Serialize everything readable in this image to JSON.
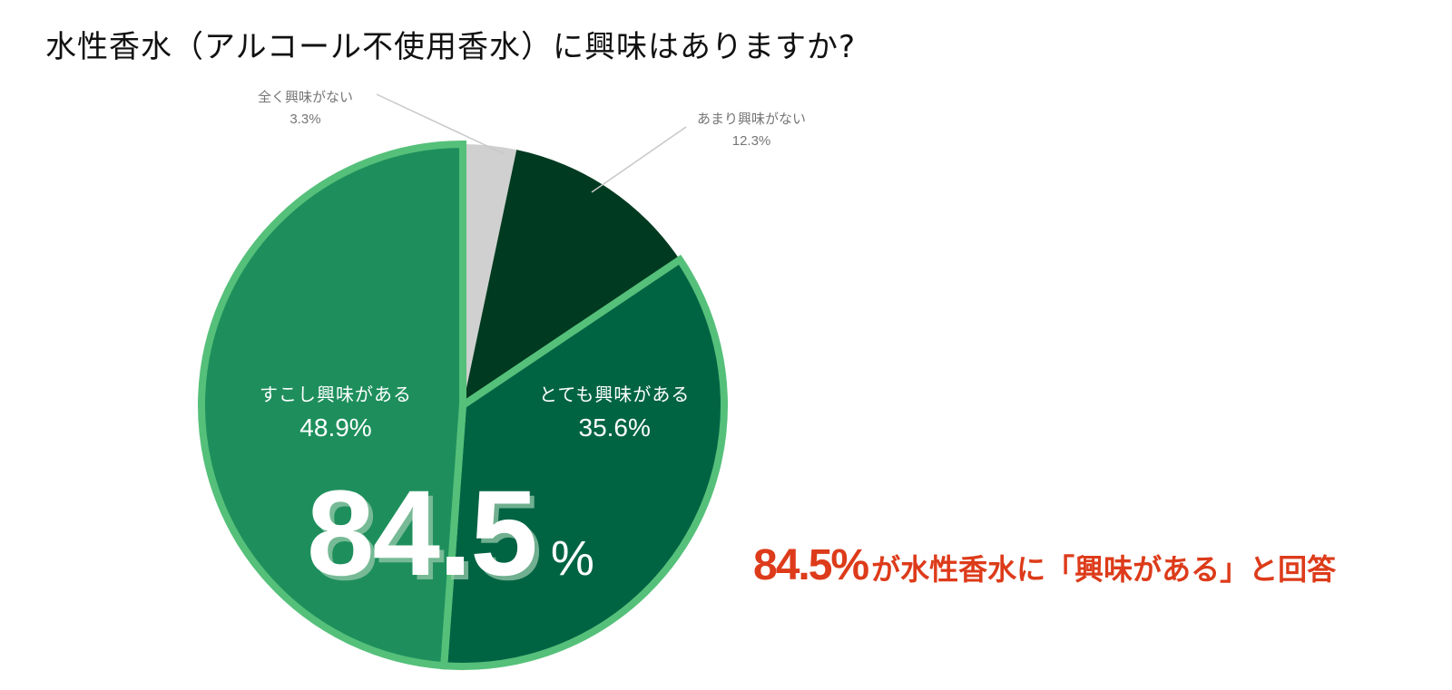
{
  "title": "水性香水（アルコール不使用香水）に興味はありますか?",
  "chart_data": {
    "type": "pie",
    "title": "水性香水（アルコール不使用香水）に興味はありますか?",
    "start_angle": "12 o'clock, clockwise",
    "categories": [
      "全く興味がない",
      "あまり興味がない",
      "とても興味がある",
      "すこし興味がある"
    ],
    "values": [
      3.3,
      12.3,
      35.6,
      48.9
    ],
    "value_labels": [
      "3.3%",
      "12.3%",
      "35.6%",
      "48.9%"
    ],
    "colors": [
      "#d0d0d0",
      "#003a20",
      "#006443",
      "#1e8f5c"
    ],
    "highlight_outline_color": "#55c07a",
    "highlighted": [
      "とても興味がある",
      "すこし興味がある"
    ],
    "label_positions": [
      "outside",
      "outside",
      "inside",
      "inside"
    ],
    "legend": "none",
    "annotation": {
      "big_number": "84.5",
      "big_unit": "%"
    }
  },
  "labels": {
    "none": {
      "name": "全く興味がない",
      "pct": "3.3%"
    },
    "little": {
      "name": "あまり興味がない",
      "pct": "12.3%"
    },
    "very": {
      "name": "とても興味がある",
      "pct": "35.6%"
    },
    "some": {
      "name": "すこし興味がある",
      "pct": "48.9%"
    }
  },
  "big": {
    "num": "84.5",
    "unit": "%"
  },
  "callout": {
    "num": "84.5%",
    "text": "が水性香水に「興味がある」と回答",
    "color": "#dd3b1a"
  }
}
